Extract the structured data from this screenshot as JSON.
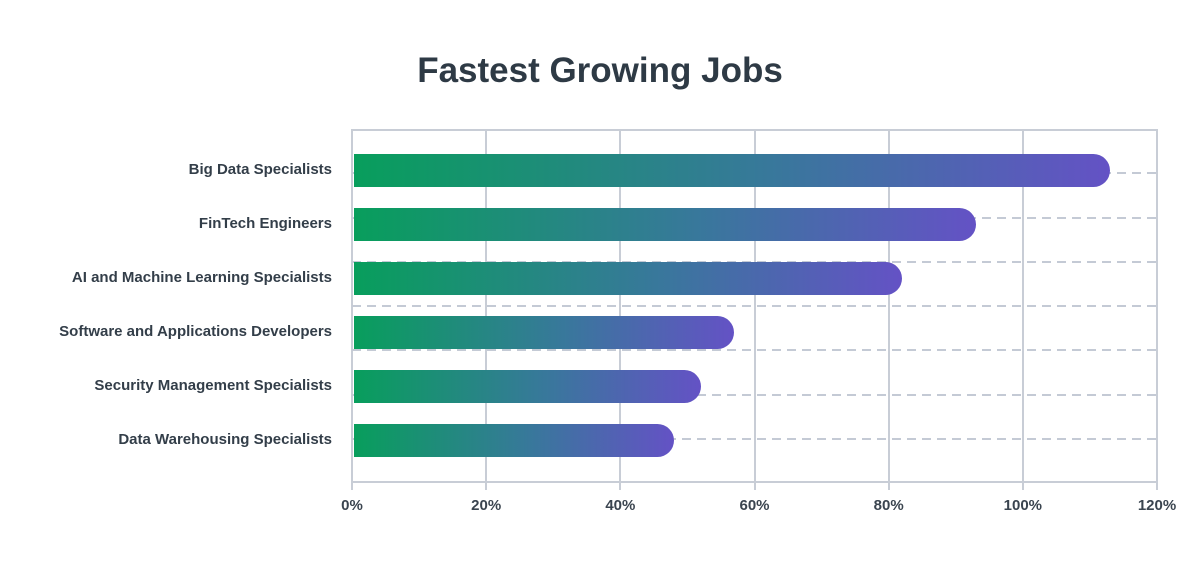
{
  "page": {
    "background": "#ffffff"
  },
  "chart_data": {
    "type": "bar",
    "orientation": "horizontal",
    "title": "Fastest Growing Jobs",
    "categories": [
      "Big Data Specialists",
      "FinTech Engineers",
      "AI and Machine Learning Specialists",
      "Software and Applications Developers",
      "Security Management Specialists",
      "Data Warehousing Specialists"
    ],
    "values": [
      113,
      93,
      82,
      57,
      52,
      48
    ],
    "unit": "%",
    "xlabel": "",
    "ylabel": "",
    "xlim": [
      0,
      120
    ],
    "x_tick_values": [
      0,
      20,
      40,
      60,
      80,
      100,
      120
    ],
    "x_tick_labels": [
      "0%",
      "20%",
      "40%",
      "60%",
      "80%",
      "100%",
      "120%"
    ],
    "legend": "none",
    "grid": {
      "vertical_gridlines": "solid",
      "horizontal_gridlines": "dashed",
      "horizontal_divisions": 8,
      "tick_marks": "below-axis"
    },
    "bar_style": {
      "rounded_end": "right",
      "flat_start": "left"
    },
    "colors": {
      "bar_gradient_start": "#089E5C",
      "bar_gradient_mid": "#38789B",
      "bar_gradient_end": "#6452C5",
      "title_text": "#2E3A45",
      "category_text": "#333E49",
      "tick_text": "#3A444F",
      "gridline_solid": "#C8CDD6",
      "gridline_dashed": "#C4CAD5"
    }
  }
}
